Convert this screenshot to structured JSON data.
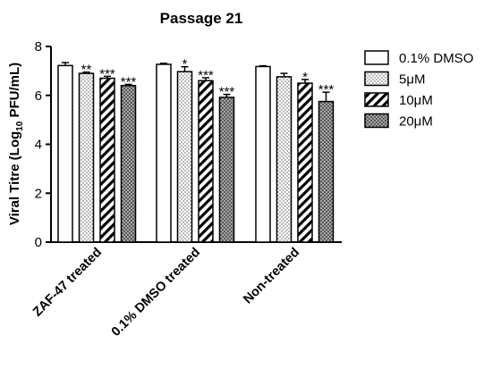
{
  "chart_data": {
    "type": "bar",
    "title": "Passage 21",
    "ylabel_main": "Viral Titre (Log",
    "ylabel_sub": "10",
    "ylabel_end": " PFU/mL)",
    "xlabel": "",
    "ylim": [
      0,
      8
    ],
    "yticks": [
      "0",
      "2",
      "4",
      "6",
      "8"
    ],
    "categories": [
      "ZAF-47 treated",
      "0.1% DMSO treated",
      "Non-treated"
    ],
    "series": [
      {
        "name": "0.1% DMSO",
        "pattern": "white",
        "values": [
          7.22,
          7.27,
          7.18
        ],
        "errors": [
          0.12,
          0.04,
          0.03
        ],
        "sig": [
          "",
          "",
          ""
        ]
      },
      {
        "name": "5μM",
        "pattern": "dots",
        "values": [
          6.9,
          6.97,
          6.76
        ],
        "errors": [
          0.05,
          0.2,
          0.14
        ],
        "sig": [
          "**",
          "*",
          ""
        ]
      },
      {
        "name": "10μM",
        "pattern": "hatch",
        "values": [
          6.7,
          6.6,
          6.5
        ],
        "errors": [
          0.08,
          0.12,
          0.15
        ],
        "sig": [
          "***",
          "***",
          "*"
        ]
      },
      {
        "name": "20μM",
        "pattern": "crosshatch",
        "values": [
          6.4,
          5.92,
          5.75
        ],
        "errors": [
          0.05,
          0.12,
          0.38
        ],
        "sig": [
          "***",
          "***",
          "***"
        ]
      }
    ],
    "legend_position": "right",
    "grid": false
  }
}
